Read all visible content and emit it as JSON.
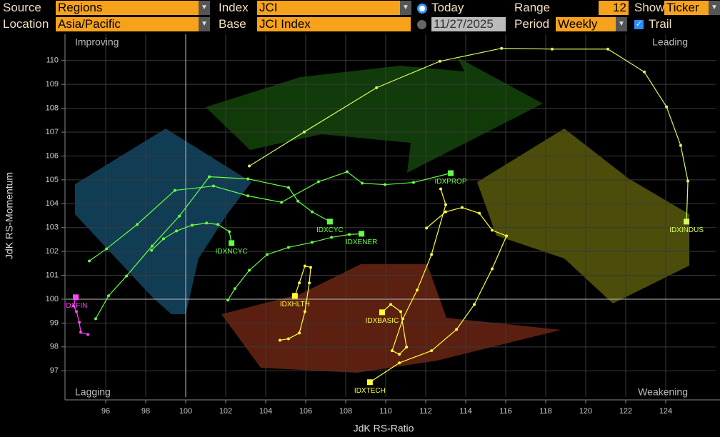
{
  "controls": {
    "source_label": "Source",
    "source": "Regions",
    "location_label": "Location",
    "location": "Asia/Pacific",
    "index_label": "Index",
    "index": "JCI",
    "base_label": "Base",
    "base": "JCI Index",
    "today": "Today",
    "date": "11/27/2025",
    "range_label": "Range",
    "range": "12",
    "period_label": "Period",
    "period": "Weekly",
    "show_label": "Show",
    "show": "Ticker",
    "trail": "Trail"
  },
  "chart_data": {
    "type": "rrg",
    "x_label": "JdK RS-Ratio",
    "y_label": "JdK RS-Momentum",
    "quadrants": {
      "top_left": "Improving",
      "top_right": "Leading",
      "bottom_left": "Lagging",
      "bottom_right": "Weakening"
    },
    "center": [
      100,
      100
    ],
    "xlim": [
      94,
      126.5
    ],
    "ylim": [
      95.9,
      111.1
    ],
    "xticks": [
      96,
      98,
      100,
      102,
      104,
      106,
      108,
      110,
      112,
      114,
      116,
      118,
      120,
      122,
      124
    ],
    "yticks": [
      97,
      98,
      99,
      100,
      101,
      102,
      103,
      104,
      105,
      106,
      107,
      108,
      109,
      110
    ],
    "grid": true,
    "series": [
      {
        "name": "IDXINDUS",
        "color": "#d2ff5c",
        "x": [
          103.18,
          105.93,
          109.54,
          112.71,
          115.79,
          118.32,
          121.11,
          122.93,
          124.04,
          124.75,
          125.11,
          125.04
        ],
        "y": [
          105.58,
          107.01,
          108.86,
          109.97,
          110.51,
          110.48,
          110.48,
          109.52,
          108.06,
          106.44,
          104.95,
          103.25
        ]
      },
      {
        "name": "IDXCYC",
        "color": "#66ff44",
        "x": [
          95.5,
          96.14,
          97.04,
          98.32,
          99.68,
          101.18,
          103.11,
          105.14,
          105.61,
          106.32,
          107.21
        ],
        "y": [
          99.18,
          100.14,
          100.97,
          102.23,
          103.48,
          105.13,
          105.04,
          104.68,
          104.11,
          103.66,
          103.25
        ]
      },
      {
        "name": "IDXPROP",
        "color": "#66ff44",
        "x": [
          95.18,
          96.04,
          97.57,
          99.46,
          101.39,
          103.11,
          104.79,
          106.64,
          108.07,
          108.82,
          109.96,
          111.39,
          113.25
        ],
        "y": [
          101.6,
          102.11,
          103.13,
          104.56,
          104.74,
          104.33,
          104.06,
          104.92,
          105.34,
          104.86,
          104.8,
          104.89,
          105.28
        ]
      },
      {
        "name": "IDXNCYC",
        "color": "#66ff44",
        "x": [
          98.29,
          98.89,
          99.54,
          100.32,
          101.04,
          101.61,
          102.18,
          102.29
        ],
        "y": [
          102.05,
          102.53,
          102.86,
          103.1,
          103.19,
          103.13,
          102.83,
          102.35
        ]
      },
      {
        "name": "IDXENER",
        "color": "#66ff44",
        "x": [
          102.11,
          102.46,
          103.18,
          104.07,
          105.14,
          106.32,
          107.29,
          108.18,
          108.79
        ],
        "y": [
          99.96,
          100.44,
          101.21,
          101.87,
          102.17,
          102.38,
          102.59,
          102.71,
          102.74
        ]
      },
      {
        "name": "IDXFIN",
        "color": "#ff44ff",
        "x": [
          95.11,
          94.75,
          94.68,
          94.54,
          94.39,
          94.5
        ],
        "y": [
          98.52,
          98.61,
          99.03,
          99.48,
          99.72,
          100.08
        ]
      },
      {
        "name": "IDXHLTH",
        "color": "#ffff33",
        "x": [
          104.71,
          105.14,
          105.68,
          105.96,
          106.18,
          106.25,
          105.96,
          105.68,
          105.46
        ],
        "y": [
          98.28,
          98.34,
          98.58,
          99.48,
          100.68,
          101.33,
          101.39,
          100.68,
          100.14
        ]
      },
      {
        "name": "IDXBASIC",
        "color": "#ffff33",
        "x": [
          112.75,
          113.0,
          112.29,
          111.57,
          110.86,
          110.32,
          110.68,
          111.04,
          110.75,
          110.25,
          109.82
        ],
        "y": [
          104.62,
          103.96,
          101.87,
          100.38,
          99.18,
          97.84,
          97.69,
          97.99,
          99.48,
          99.78,
          99.45
        ]
      },
      {
        "name": "IDXTECH",
        "color": "#ffff33",
        "x": [
          112.04,
          113.0,
          113.82,
          114.68,
          115.32,
          116.04,
          115.32,
          114.43,
          113.54,
          112.29,
          110.68,
          109.21
        ],
        "y": [
          102.98,
          103.66,
          103.84,
          103.6,
          102.89,
          102.65,
          101.27,
          99.78,
          98.73,
          97.84,
          97.33,
          96.52
        ]
      }
    ]
  }
}
